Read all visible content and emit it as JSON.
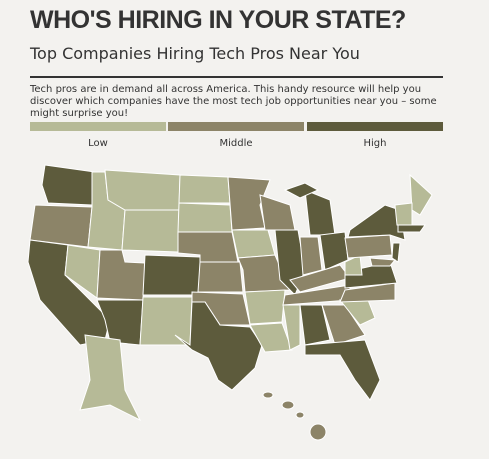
{
  "header": {
    "title": "WHO'S HIRING IN YOUR STATE?",
    "subtitle": "Top Companies Hiring Tech Pros Near You",
    "description": "Tech pros are in demand all across America. This handy resource will help you discover which companies have the most tech job opportunities near you – some might surprise you!"
  },
  "legend": [
    {
      "label": "Low",
      "color": "#b6ba97"
    },
    {
      "label": "Middle",
      "color": "#8c8468"
    },
    {
      "label": "High",
      "color": "#5d5b3c"
    }
  ]
}
